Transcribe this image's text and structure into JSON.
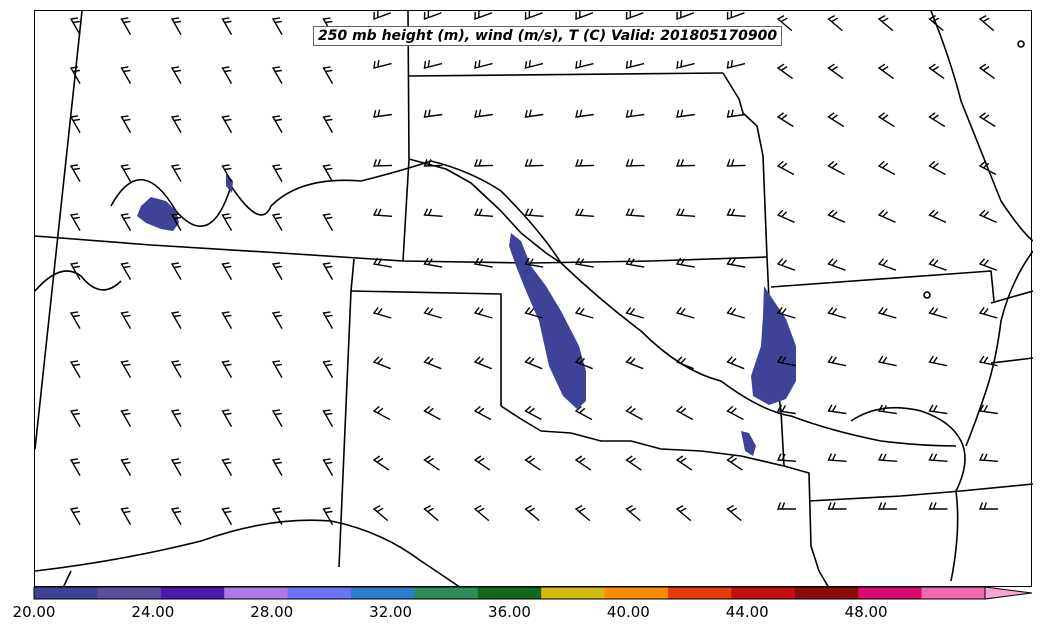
{
  "title": "250 mb height (m), wind (m/s), T (C) Valid: 201805170900",
  "colorbar": {
    "ticks": [
      "20.00",
      "24.00",
      "28.00",
      "32.00",
      "36.00",
      "40.00",
      "44.00",
      "48.00"
    ],
    "min": 20,
    "max": 52,
    "step": 2,
    "colors": [
      "#3f4397",
      "#5b4f9c",
      "#4a1aa8",
      "#a77ae6",
      "#6f72f5",
      "#2e7ccb",
      "#2d8b5c",
      "#0f6a1c",
      "#d6b814",
      "#ff8a00",
      "#e83a0a",
      "#c40f0f",
      "#8b0a0a",
      "#d80d6e",
      "#f06ab0"
    ],
    "extend_color": "#f7a6d2"
  },
  "shaded_color": "#3f4397"
}
